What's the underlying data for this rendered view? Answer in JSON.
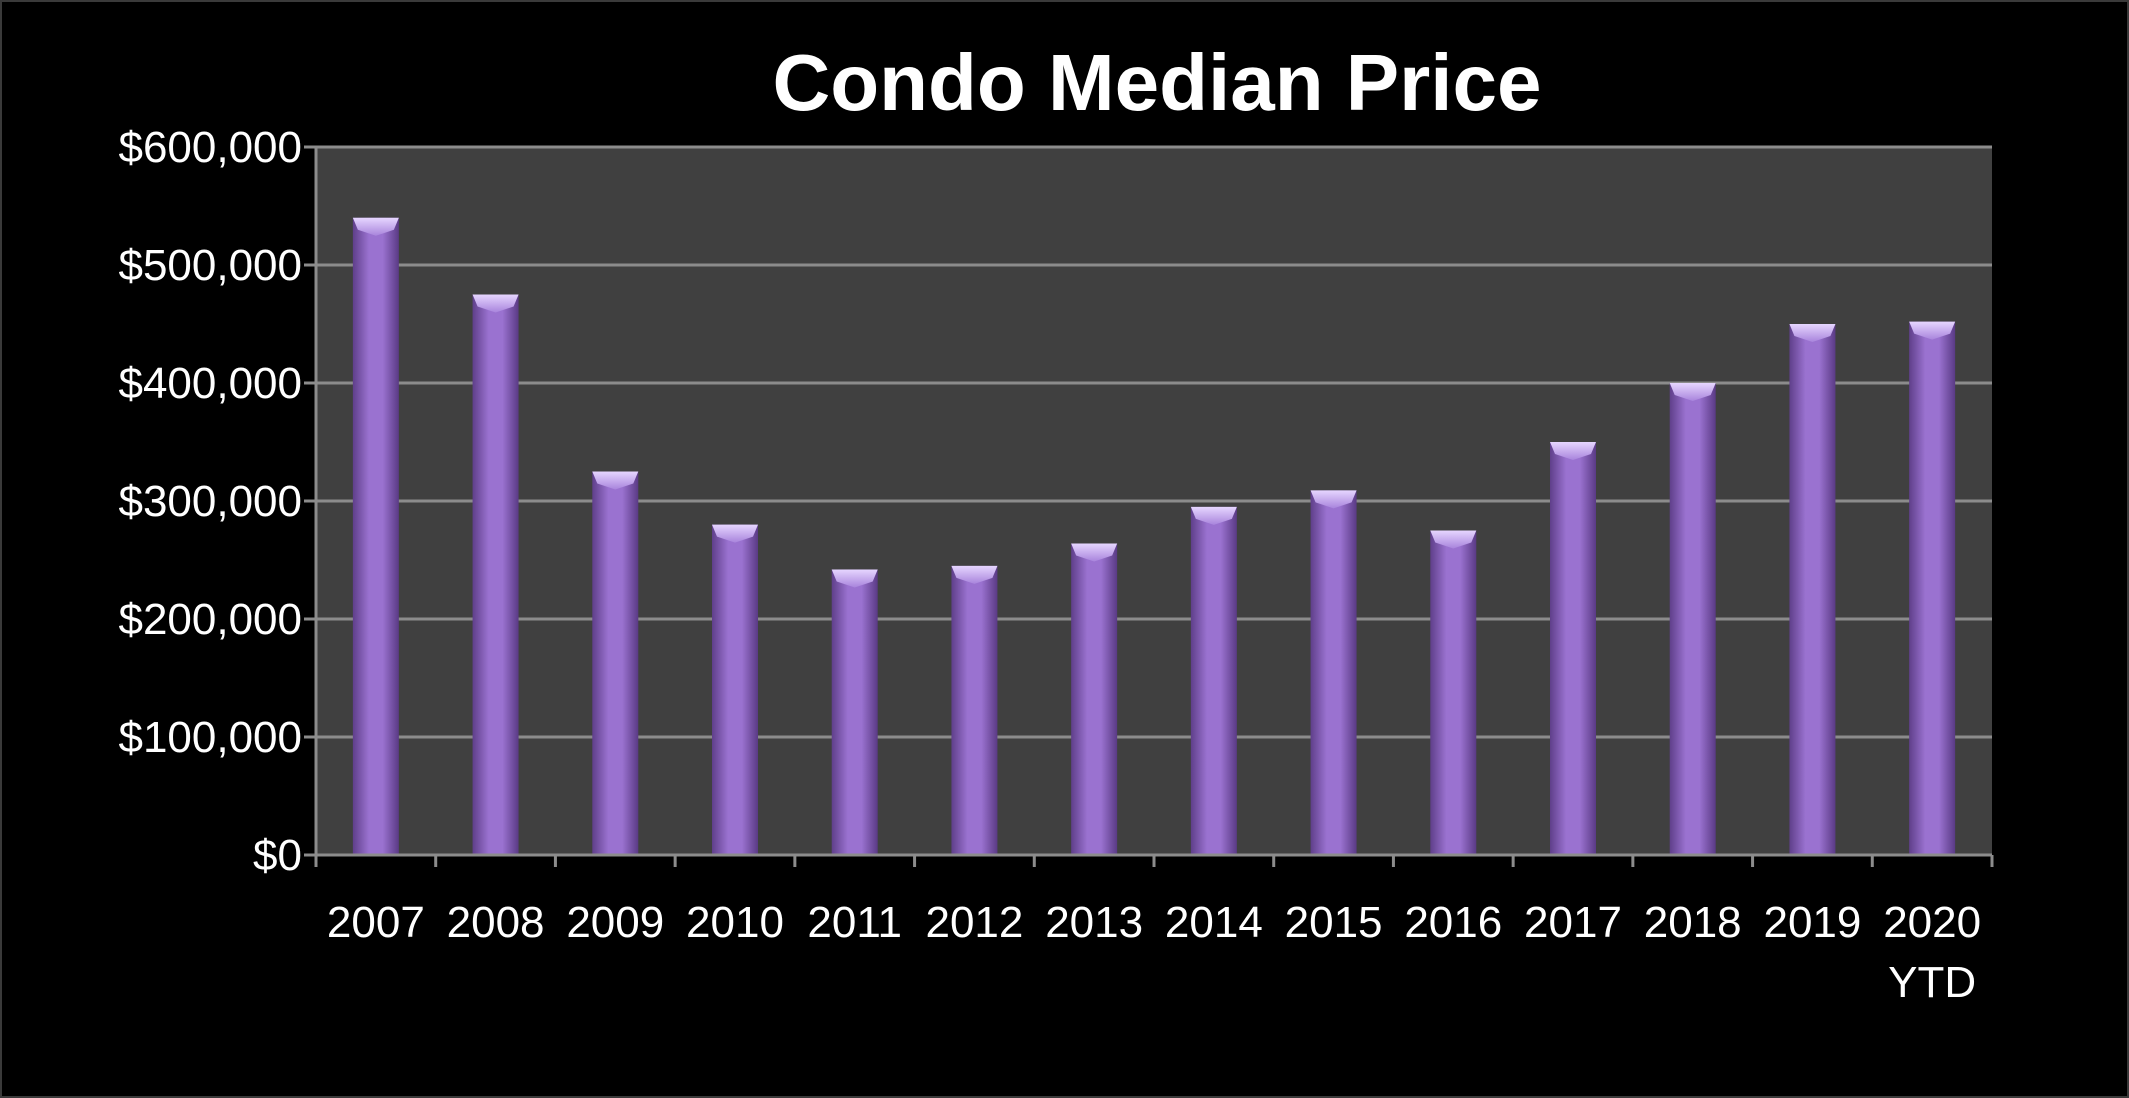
{
  "colors": {
    "background": "#000000",
    "plot_area": "#404040",
    "gridline": "#8c8c8c",
    "bar": "#8a63bf",
    "text": "#ffffff"
  },
  "chart_data": {
    "type": "bar",
    "title": "Condo Median Price",
    "xlabel": "",
    "ylabel": "",
    "categories": [
      [
        "2007"
      ],
      [
        "2008"
      ],
      [
        "2009"
      ],
      [
        "2010"
      ],
      [
        "2011"
      ],
      [
        "2012"
      ],
      [
        "2013"
      ],
      [
        "2014"
      ],
      [
        "2015"
      ],
      [
        "2016"
      ],
      [
        "2017"
      ],
      [
        "2018"
      ],
      [
        "2019"
      ],
      [
        "2020",
        "YTD"
      ]
    ],
    "values": [
      540000,
      475000,
      325000,
      280000,
      242000,
      245000,
      264000,
      295000,
      309000,
      275000,
      350000,
      400000,
      450000,
      452000
    ],
    "ylim": [
      0,
      600000
    ],
    "y_ticks": [
      0,
      100000,
      200000,
      300000,
      400000,
      500000,
      600000
    ],
    "y_tick_labels": [
      "$0",
      "$100,000",
      "$200,000",
      "$300,000",
      "$400,000",
      "$500,000",
      "$600,000"
    ],
    "grid": true,
    "legend": "none"
  }
}
